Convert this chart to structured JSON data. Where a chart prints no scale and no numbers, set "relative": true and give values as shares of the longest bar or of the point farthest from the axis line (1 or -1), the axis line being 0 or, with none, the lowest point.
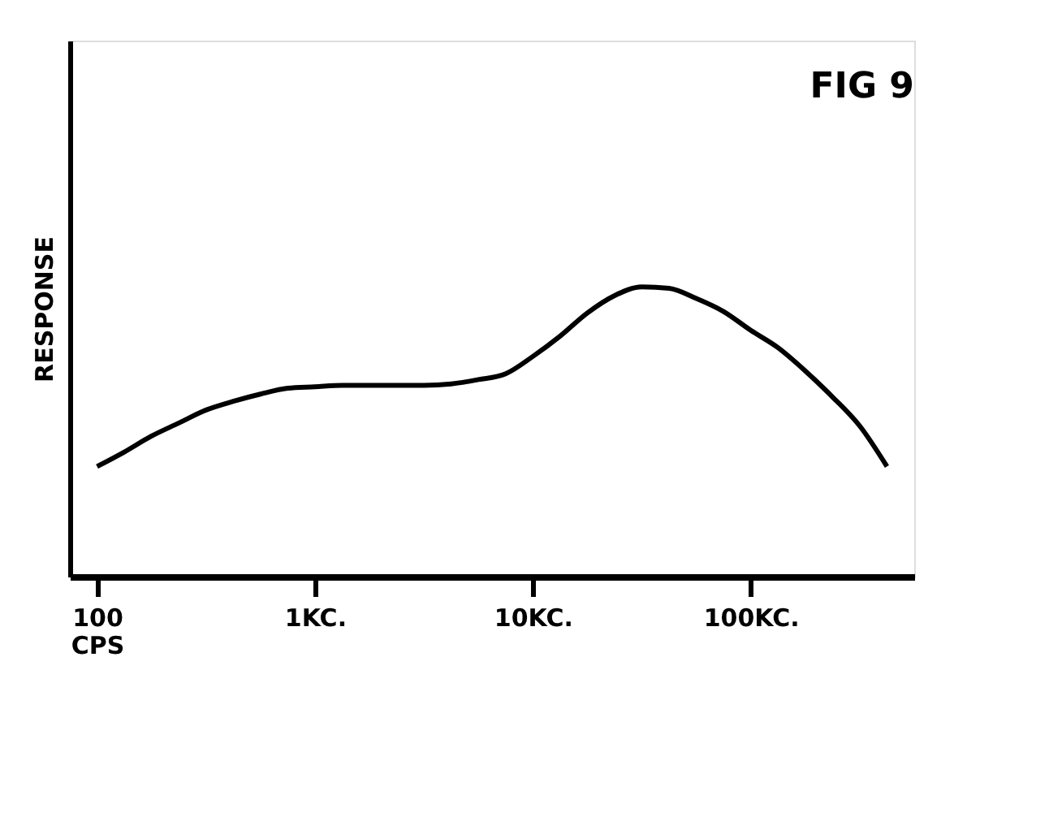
{
  "chart_data": {
    "type": "line",
    "title": "FIG 9",
    "ylabel": "RESPONSE",
    "relative": true,
    "categories": [
      "100\nCPS",
      null,
      null,
      null,
      null,
      null,
      null,
      null,
      "1KC.",
      null,
      null,
      null,
      null,
      null,
      null,
      null,
      "10KC.",
      null,
      null,
      null,
      null,
      null,
      null,
      null,
      "100KC.",
      null,
      null,
      null,
      null,
      null
    ],
    "series": [
      {
        "color": "#000000",
        "values": [
          0.38,
          0.43,
          0.485,
          0.53,
          0.575,
          0.605,
          0.63,
          0.65,
          0.655,
          0.66,
          0.66,
          0.66,
          0.66,
          0.665,
          0.68,
          0.7,
          0.76,
          0.83,
          0.91,
          0.97,
          1.0,
          0.995,
          0.96,
          0.915,
          0.85,
          0.79,
          0.71,
          0.62,
          0.52,
          0.38
        ]
      }
    ],
    "grid": false,
    "marker": "none",
    "line_style": "solid"
  }
}
